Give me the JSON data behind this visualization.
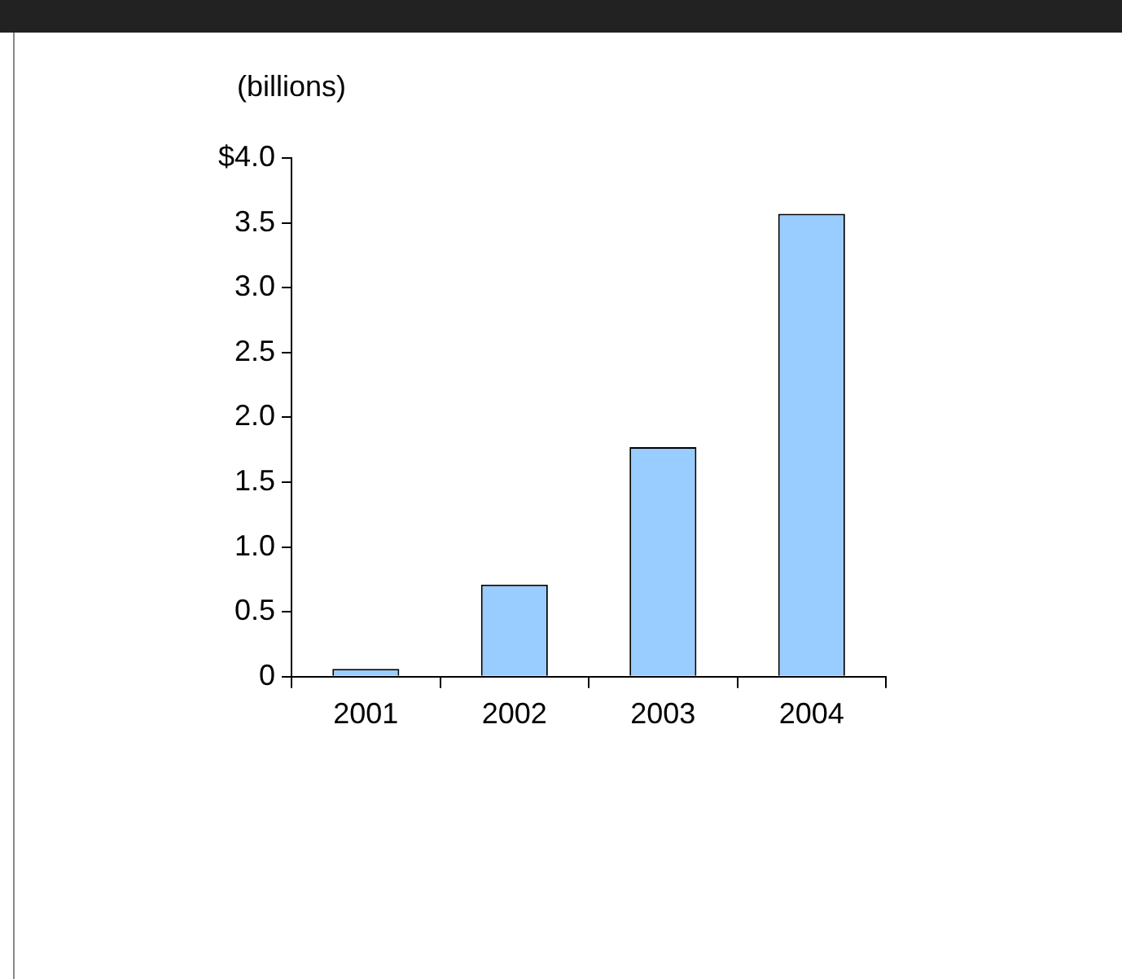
{
  "chart_data": {
    "type": "bar",
    "ylabel": "(billions)",
    "categories": [
      "2001",
      "2002",
      "2003",
      "2004"
    ],
    "values": [
      0.06,
      0.71,
      1.77,
      3.57
    ],
    "color": "#99ccff",
    "ylim": [
      0,
      4
    ],
    "yticks": [
      {
        "value": 0,
        "label": "0"
      },
      {
        "value": 0.5,
        "label": "0.5"
      },
      {
        "value": 1,
        "label": "1.0"
      },
      {
        "value": 1.5,
        "label": "1.5"
      },
      {
        "value": 2,
        "label": "2.0"
      },
      {
        "value": 2.5,
        "label": "2.5"
      },
      {
        "value": 3,
        "label": "3.0"
      },
      {
        "value": 3.5,
        "label": "3.5"
      },
      {
        "value": 4,
        "label": "$4.0"
      }
    ],
    "grid": false,
    "legend": false
  }
}
